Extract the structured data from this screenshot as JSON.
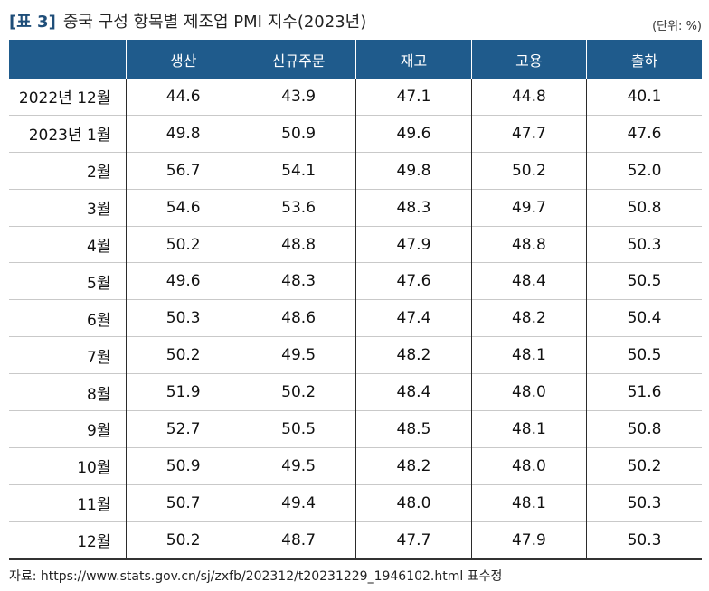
{
  "title": {
    "tag": "[표 3]",
    "text": "중국 구성 항목별 제조업 PMI 지수(2023년)"
  },
  "unit": "(단위: %)",
  "table": {
    "corner": "",
    "headers": [
      "생산",
      "신규주문",
      "재고",
      "고용",
      "출하"
    ],
    "rows": [
      {
        "label": "2022년 12월",
        "values": [
          "44.6",
          "43.9",
          "47.1",
          "44.8",
          "40.1"
        ]
      },
      {
        "label": "2023년 1월",
        "values": [
          "49.8",
          "50.9",
          "49.6",
          "47.7",
          "47.6"
        ]
      },
      {
        "label": "2월",
        "values": [
          "56.7",
          "54.1",
          "49.8",
          "50.2",
          "52.0"
        ]
      },
      {
        "label": "3월",
        "values": [
          "54.6",
          "53.6",
          "48.3",
          "49.7",
          "50.8"
        ]
      },
      {
        "label": "4월",
        "values": [
          "50.2",
          "48.8",
          "47.9",
          "48.8",
          "50.3"
        ]
      },
      {
        "label": "5월",
        "values": [
          "49.6",
          "48.3",
          "47.6",
          "48.4",
          "50.5"
        ]
      },
      {
        "label": "6월",
        "values": [
          "50.3",
          "48.6",
          "47.4",
          "48.2",
          "50.4"
        ]
      },
      {
        "label": "7월",
        "values": [
          "50.2",
          "49.5",
          "48.2",
          "48.1",
          "50.5"
        ]
      },
      {
        "label": "8월",
        "values": [
          "51.9",
          "50.2",
          "48.4",
          "48.0",
          "51.6"
        ]
      },
      {
        "label": "9월",
        "values": [
          "52.7",
          "50.5",
          "48.5",
          "48.1",
          "50.8"
        ]
      },
      {
        "label": "10월",
        "values": [
          "50.9",
          "49.5",
          "48.2",
          "48.0",
          "50.2"
        ]
      },
      {
        "label": "11월",
        "values": [
          "50.7",
          "49.4",
          "48.0",
          "48.1",
          "50.3"
        ]
      },
      {
        "label": "12월",
        "values": [
          "50.2",
          "48.7",
          "47.7",
          "47.9",
          "50.3"
        ]
      }
    ]
  },
  "source": "자료: https://www.stats.gov.cn/sj/zxfb/202312/t20231229_1946102.html 표수정"
}
